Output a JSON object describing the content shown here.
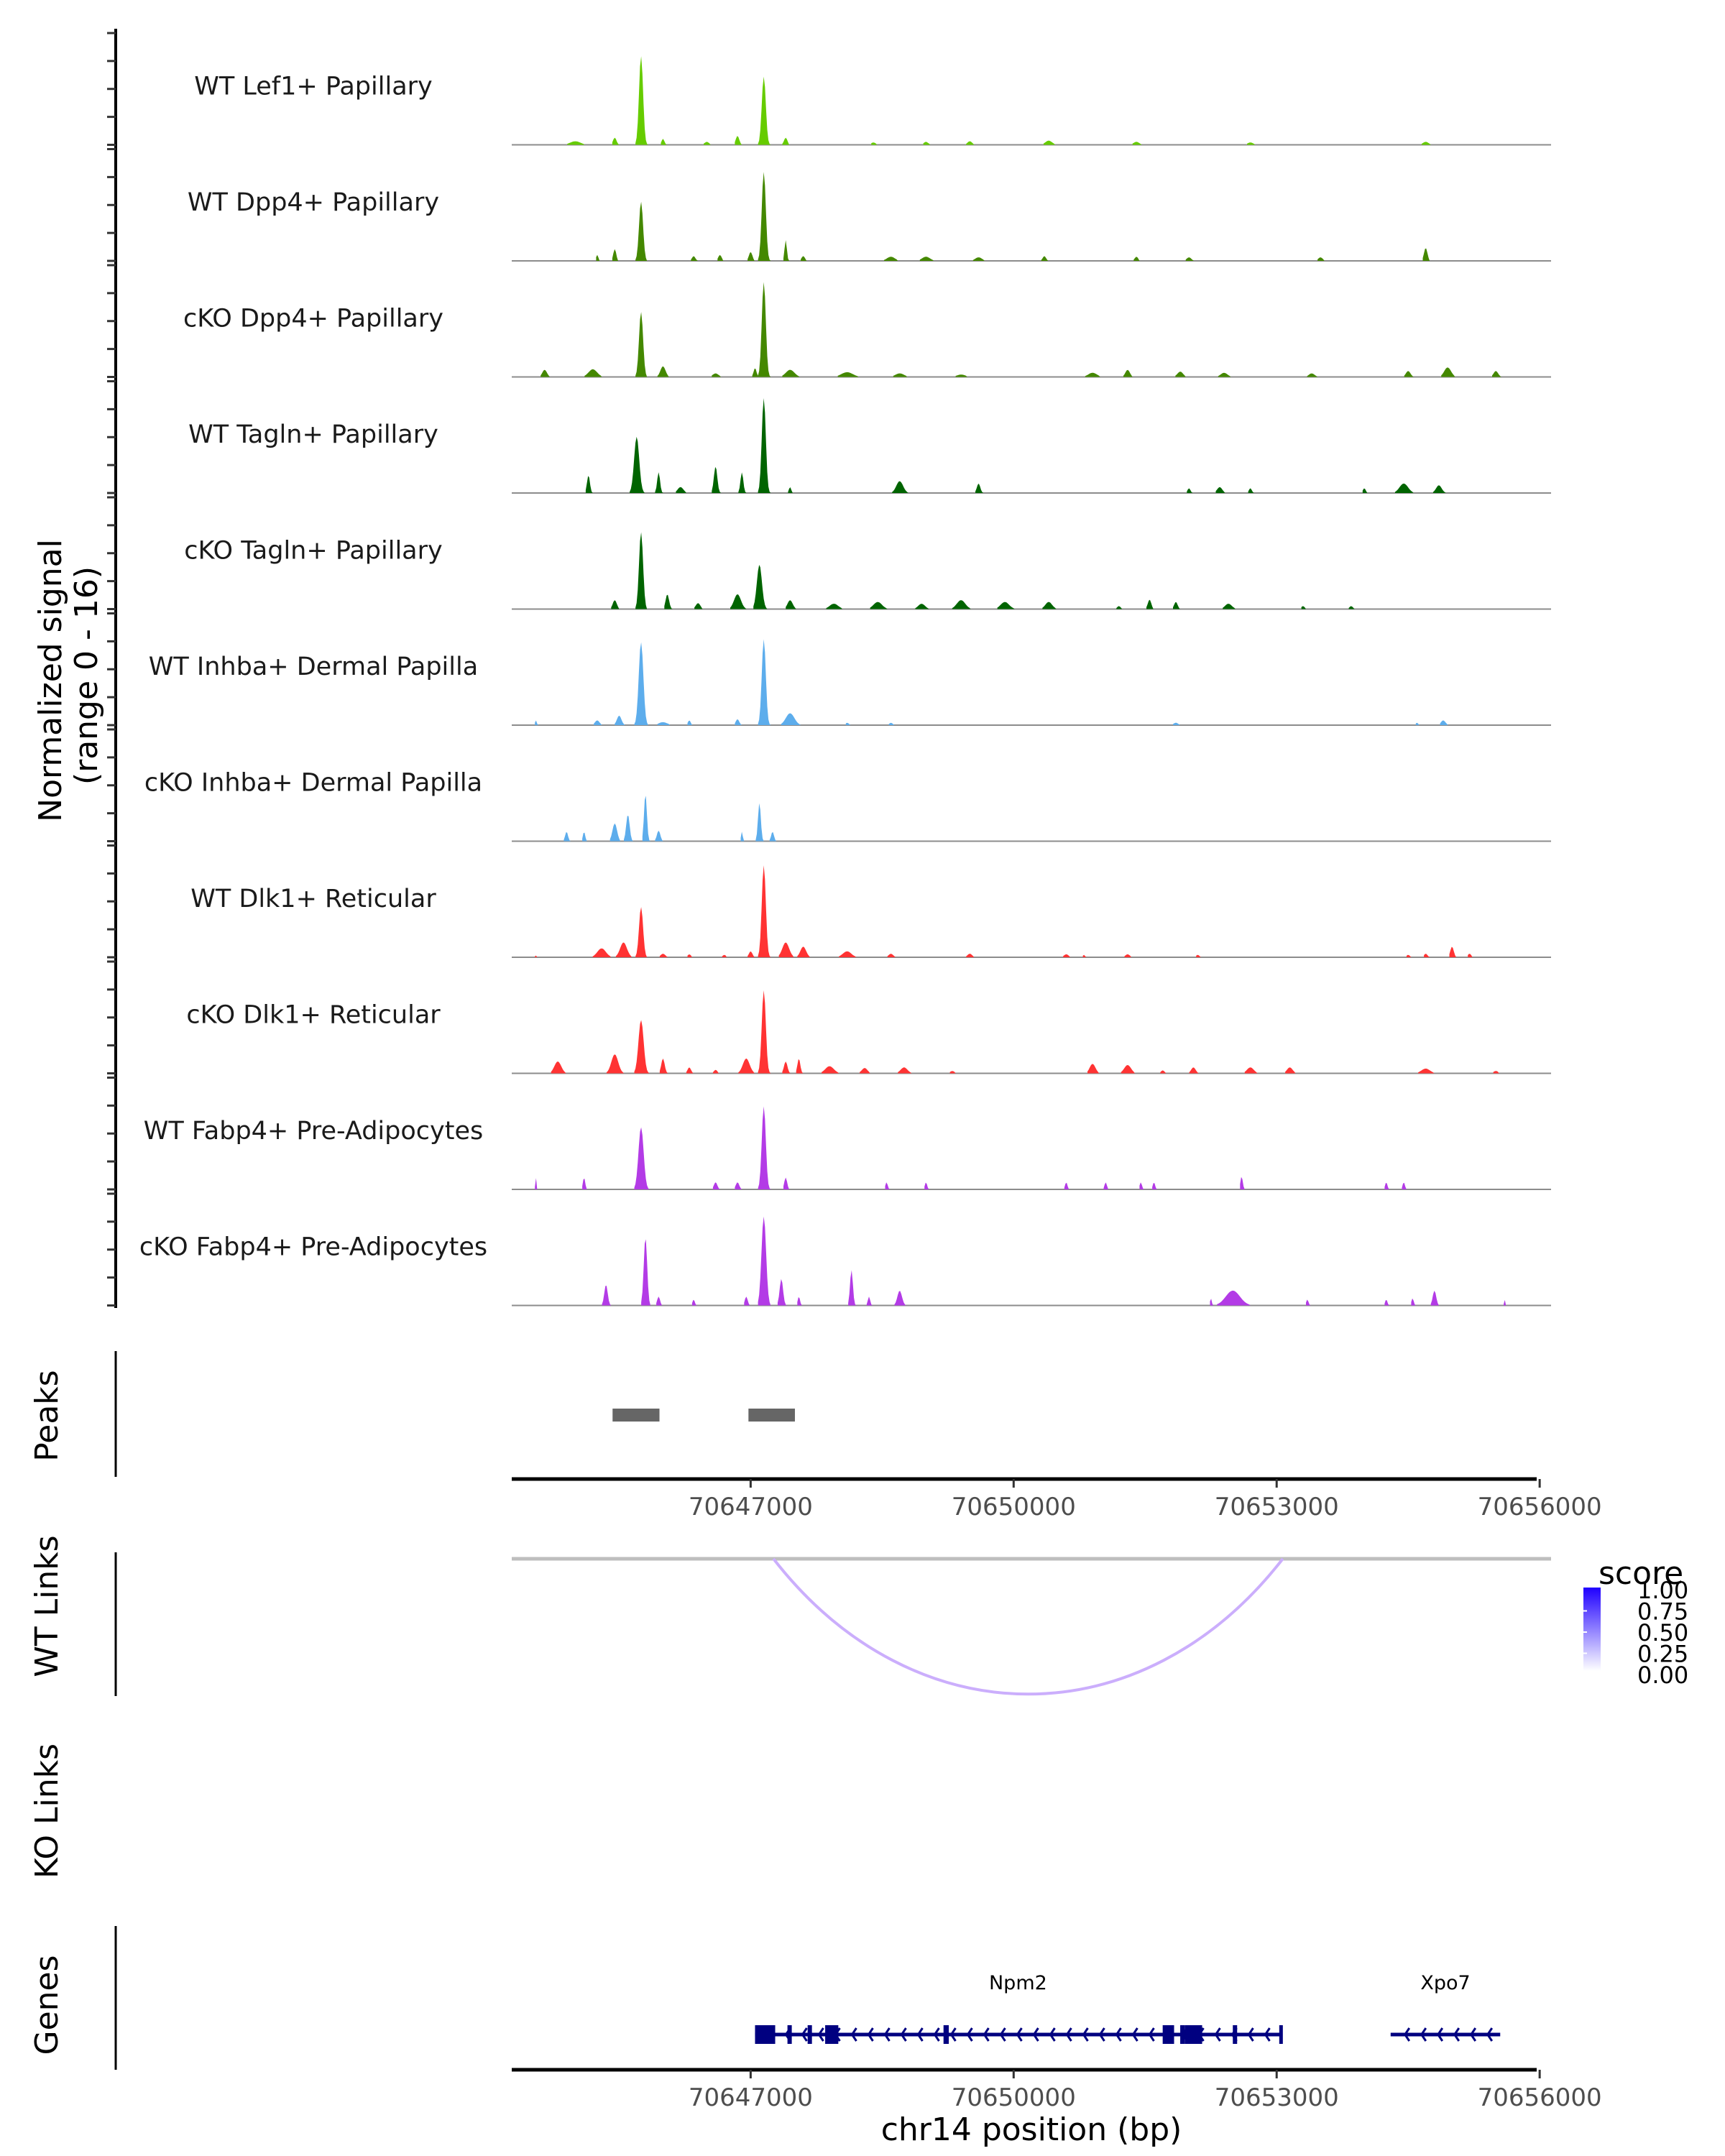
{
  "chart_data": {
    "type": "area",
    "title": "",
    "region": {
      "chrom": "chr14",
      "start": 70644275,
      "end": 70656130
    },
    "xlabel": "chr14 position (bp)",
    "x_ticks": [
      70647000,
      70650000,
      70653000,
      70656000
    ],
    "x_tick_labels": [
      "70647000",
      "70650000",
      "70653000",
      "70656000"
    ],
    "coverage_ylabel": "Normalized signal\n(range 0 - 16)",
    "coverage_ylabel_lines": [
      "Normalized signal",
      "(range 0 - 16)"
    ],
    "ylim": [
      0,
      16
    ],
    "tracks": [
      {
        "name": "WT Lef1+ Papillary",
        "color": "#66CC00",
        "peaks": [
          [
            70645000,
            0.6,
            180
          ],
          [
            70645450,
            1.2,
            60
          ],
          [
            70645750,
            15.0,
            70
          ],
          [
            70646000,
            1.0,
            50
          ],
          [
            70646500,
            0.5,
            80
          ],
          [
            70646850,
            1.5,
            60
          ],
          [
            70647150,
            11.5,
            70
          ],
          [
            70647400,
            1.2,
            60
          ],
          [
            70648400,
            0.4,
            80
          ],
          [
            70649000,
            0.5,
            80
          ],
          [
            70649500,
            0.6,
            80
          ],
          [
            70650400,
            0.7,
            120
          ],
          [
            70651400,
            0.5,
            100
          ],
          [
            70652700,
            0.4,
            100
          ],
          [
            70654700,
            0.5,
            100
          ]
        ]
      },
      {
        "name": "WT Dpp4+ Papillary",
        "color": "#448800",
        "peaks": [
          [
            70645250,
            1.0,
            40
          ],
          [
            70645450,
            2.0,
            50
          ],
          [
            70645750,
            10.0,
            70
          ],
          [
            70646350,
            0.8,
            60
          ],
          [
            70646650,
            1.0,
            60
          ],
          [
            70647000,
            1.5,
            60
          ],
          [
            70647150,
            15.0,
            70
          ],
          [
            70647400,
            3.5,
            40
          ],
          [
            70647600,
            0.8,
            60
          ],
          [
            70648600,
            0.7,
            140
          ],
          [
            70649000,
            0.7,
            140
          ],
          [
            70649600,
            0.6,
            120
          ],
          [
            70650350,
            0.8,
            60
          ],
          [
            70651400,
            0.7,
            60
          ],
          [
            70652000,
            0.6,
            80
          ],
          [
            70653500,
            0.6,
            80
          ],
          [
            70654700,
            2.2,
            60
          ]
        ]
      },
      {
        "name": "cKO Dpp4+ Papillary",
        "color": "#448800",
        "peaks": [
          [
            70644650,
            1.2,
            80
          ],
          [
            70645200,
            1.3,
            150
          ],
          [
            70645750,
            11.0,
            70
          ],
          [
            70646000,
            1.8,
            90
          ],
          [
            70646600,
            0.6,
            100
          ],
          [
            70647050,
            1.5,
            50
          ],
          [
            70647150,
            16.0,
            70
          ],
          [
            70647450,
            1.2,
            150
          ],
          [
            70648100,
            0.8,
            200
          ],
          [
            70648700,
            0.6,
            150
          ],
          [
            70649400,
            0.4,
            150
          ],
          [
            70650900,
            0.7,
            150
          ],
          [
            70651300,
            1.2,
            80
          ],
          [
            70651900,
            0.9,
            100
          ],
          [
            70652400,
            0.7,
            120
          ],
          [
            70653400,
            0.6,
            100
          ],
          [
            70654500,
            1.0,
            80
          ],
          [
            70654950,
            1.6,
            120
          ],
          [
            70655500,
            1.0,
            80
          ]
        ]
      },
      {
        "name": "WT Tagln+ Papillary",
        "color": "#006400",
        "peaks": [
          [
            70645150,
            3.0,
            50
          ],
          [
            70645700,
            9.5,
            90
          ],
          [
            70645950,
            3.5,
            50
          ],
          [
            70646200,
            1.0,
            100
          ],
          [
            70646600,
            4.5,
            60
          ],
          [
            70646900,
            3.5,
            50
          ],
          [
            70647150,
            16.0,
            70
          ],
          [
            70647450,
            1.0,
            40
          ],
          [
            70648700,
            2.0,
            120
          ],
          [
            70649600,
            1.6,
            60
          ],
          [
            70652000,
            0.8,
            50
          ],
          [
            70652350,
            1.0,
            90
          ],
          [
            70652700,
            0.8,
            50
          ],
          [
            70654000,
            0.8,
            50
          ],
          [
            70654450,
            1.6,
            150
          ],
          [
            70654850,
            1.3,
            100
          ]
        ]
      },
      {
        "name": "cKO Tagln+ Papillary",
        "color": "#006400",
        "peaks": [
          [
            70645450,
            1.5,
            70
          ],
          [
            70645750,
            13.0,
            70
          ],
          [
            70646050,
            2.5,
            60
          ],
          [
            70646400,
            1.0,
            80
          ],
          [
            70646850,
            2.5,
            120
          ],
          [
            70647100,
            7.5,
            90
          ],
          [
            70647450,
            1.5,
            90
          ],
          [
            70647950,
            0.9,
            150
          ],
          [
            70648450,
            1.2,
            150
          ],
          [
            70648950,
            0.9,
            120
          ],
          [
            70649400,
            1.5,
            150
          ],
          [
            70649900,
            1.2,
            150
          ],
          [
            70650400,
            1.2,
            120
          ],
          [
            70651200,
            0.5,
            60
          ],
          [
            70651550,
            1.6,
            60
          ],
          [
            70651850,
            1.2,
            60
          ],
          [
            70652450,
            0.9,
            120
          ],
          [
            70653300,
            0.5,
            60
          ],
          [
            70653850,
            0.5,
            60
          ]
        ]
      },
      {
        "name": "WT Inhba+ Dermal Papilla",
        "color": "#5DADEC",
        "peaks": [
          [
            70644550,
            0.8,
            30
          ],
          [
            70645250,
            0.8,
            80
          ],
          [
            70645500,
            1.6,
            80
          ],
          [
            70645750,
            14.0,
            80
          ],
          [
            70646000,
            0.5,
            150
          ],
          [
            70646300,
            0.8,
            50
          ],
          [
            70646850,
            1.0,
            60
          ],
          [
            70647150,
            14.5,
            70
          ],
          [
            70647450,
            2.0,
            150
          ],
          [
            70648100,
            0.4,
            60
          ],
          [
            70648600,
            0.4,
            60
          ],
          [
            70651850,
            0.4,
            80
          ],
          [
            70654600,
            0.4,
            50
          ],
          [
            70654900,
            0.8,
            80
          ]
        ]
      },
      {
        "name": "cKO Inhba+ Dermal Papilla",
        "color": "#5DADEC",
        "peaks": [
          [
            70644900,
            1.6,
            50
          ],
          [
            70645100,
            1.6,
            40
          ],
          [
            70645450,
            3.0,
            80
          ],
          [
            70645600,
            4.5,
            60
          ],
          [
            70645800,
            8.0,
            50
          ],
          [
            70645950,
            1.8,
            60
          ],
          [
            70646900,
            1.6,
            30
          ],
          [
            70647100,
            6.5,
            50
          ],
          [
            70647250,
            1.6,
            50
          ]
        ]
      },
      {
        "name": "WT Dlk1+ Reticular",
        "color": "#FF3333",
        "peaks": [
          [
            70644550,
            0.3,
            30
          ],
          [
            70645300,
            1.5,
            150
          ],
          [
            70645550,
            2.5,
            120
          ],
          [
            70645750,
            8.5,
            70
          ],
          [
            70646000,
            0.6,
            80
          ],
          [
            70646300,
            0.5,
            60
          ],
          [
            70646700,
            0.4,
            60
          ],
          [
            70647000,
            1.0,
            60
          ],
          [
            70647150,
            15.5,
            70
          ],
          [
            70647400,
            2.5,
            120
          ],
          [
            70647600,
            1.8,
            100
          ],
          [
            70648100,
            1.0,
            150
          ],
          [
            70648600,
            0.6,
            80
          ],
          [
            70649500,
            0.6,
            80
          ],
          [
            70650600,
            0.5,
            80
          ],
          [
            70650800,
            0.4,
            40
          ],
          [
            70651300,
            0.5,
            80
          ],
          [
            70652100,
            0.4,
            60
          ],
          [
            70654500,
            0.4,
            60
          ],
          [
            70654700,
            0.6,
            60
          ],
          [
            70655000,
            1.8,
            60
          ],
          [
            70655200,
            0.6,
            60
          ]
        ]
      },
      {
        "name": "cKO Dlk1+ Reticular",
        "color": "#FF3333",
        "peaks": [
          [
            70644800,
            2.0,
            120
          ],
          [
            70645450,
            3.2,
            120
          ],
          [
            70645750,
            9.0,
            90
          ],
          [
            70646000,
            2.5,
            60
          ],
          [
            70646300,
            1.0,
            60
          ],
          [
            70646600,
            0.6,
            60
          ],
          [
            70646950,
            2.5,
            120
          ],
          [
            70647150,
            14.0,
            70
          ],
          [
            70647400,
            2.0,
            60
          ],
          [
            70647550,
            2.5,
            50
          ],
          [
            70647900,
            1.2,
            150
          ],
          [
            70648300,
            0.9,
            100
          ],
          [
            70648750,
            1.0,
            120
          ],
          [
            70649300,
            0.4,
            80
          ],
          [
            70650900,
            1.6,
            100
          ],
          [
            70651300,
            1.4,
            120
          ],
          [
            70651700,
            0.5,
            60
          ],
          [
            70652050,
            1.0,
            80
          ],
          [
            70652700,
            1.0,
            120
          ],
          [
            70653150,
            1.0,
            100
          ],
          [
            70654700,
            0.8,
            150
          ],
          [
            70655500,
            0.4,
            80
          ]
        ]
      },
      {
        "name": "WT Fabp4+ Pre-Adipocytes",
        "color": "#B33BE6",
        "peaks": [
          [
            70644550,
            2.0,
            20
          ],
          [
            70645100,
            2.0,
            40
          ],
          [
            70645750,
            10.5,
            90
          ],
          [
            70646600,
            1.2,
            60
          ],
          [
            70646850,
            1.2,
            60
          ],
          [
            70647150,
            14.0,
            70
          ],
          [
            70647400,
            2.0,
            50
          ],
          [
            70648550,
            1.2,
            40
          ],
          [
            70649000,
            1.2,
            40
          ],
          [
            70650600,
            1.2,
            40
          ],
          [
            70651050,
            1.2,
            40
          ],
          [
            70651450,
            1.2,
            40
          ],
          [
            70651600,
            1.2,
            40
          ],
          [
            70652600,
            2.2,
            40
          ],
          [
            70654250,
            1.2,
            40
          ],
          [
            70654450,
            1.2,
            40
          ]
        ]
      },
      {
        "name": "cKO Fabp4+ Pre-Adipocytes",
        "color": "#B33BE6",
        "peaks": [
          [
            70645350,
            3.5,
            60
          ],
          [
            70645800,
            11.5,
            60
          ],
          [
            70645950,
            1.5,
            50
          ],
          [
            70646350,
            1.0,
            40
          ],
          [
            70646950,
            1.5,
            50
          ],
          [
            70647150,
            15.0,
            80
          ],
          [
            70647350,
            4.5,
            60
          ],
          [
            70647550,
            1.5,
            40
          ],
          [
            70648150,
            6.0,
            50
          ],
          [
            70648350,
            1.5,
            40
          ],
          [
            70648700,
            2.5,
            80
          ],
          [
            70652250,
            1.2,
            30
          ],
          [
            70652500,
            2.5,
            250
          ],
          [
            70653350,
            1.0,
            40
          ],
          [
            70654250,
            1.0,
            40
          ],
          [
            70654550,
            1.2,
            40
          ],
          [
            70654800,
            2.5,
            60
          ],
          [
            70655600,
            1.0,
            20
          ]
        ]
      }
    ],
    "peaks_panel": {
      "label": "Peaks",
      "color": "#666666",
      "regions": [
        [
          70645425,
          70645960
        ],
        [
          70646975,
          70647505
        ]
      ]
    },
    "links_panels": [
      {
        "label": "WT Links",
        "links": [
          {
            "start": 70647260,
            "end": 70653070,
            "score": 0.3
          }
        ]
      },
      {
        "label": "KO Links",
        "links": []
      }
    ],
    "legend": {
      "title": "score",
      "position": "right",
      "ticks": [
        "1.00",
        "0.75",
        "0.50",
        "0.25",
        "0.00"
      ],
      "low_color": "#FFFFFF",
      "high_color": "#1F00FF"
    },
    "genes_panel": {
      "label": "Genes",
      "color": "#000080",
      "genes": [
        {
          "name": "Npm2",
          "strand": "-",
          "start": 70647050,
          "end": 70653050,
          "exons": [
            [
              70647050,
              70647280
            ],
            [
              70647420,
              70647440
            ],
            [
              70647650,
              70647670
            ],
            [
              70647850,
              70648000
            ],
            [
              70649200,
              70649260
            ],
            [
              70651700,
              70651830
            ],
            [
              70651900,
              70651920
            ],
            [
              70651950,
              70652150
            ],
            [
              70652500,
              70652520
            ]
          ]
        },
        {
          "name": "Xpo7",
          "strand": "-",
          "start": 70654300,
          "end": 70655550,
          "exons": []
        }
      ]
    }
  }
}
